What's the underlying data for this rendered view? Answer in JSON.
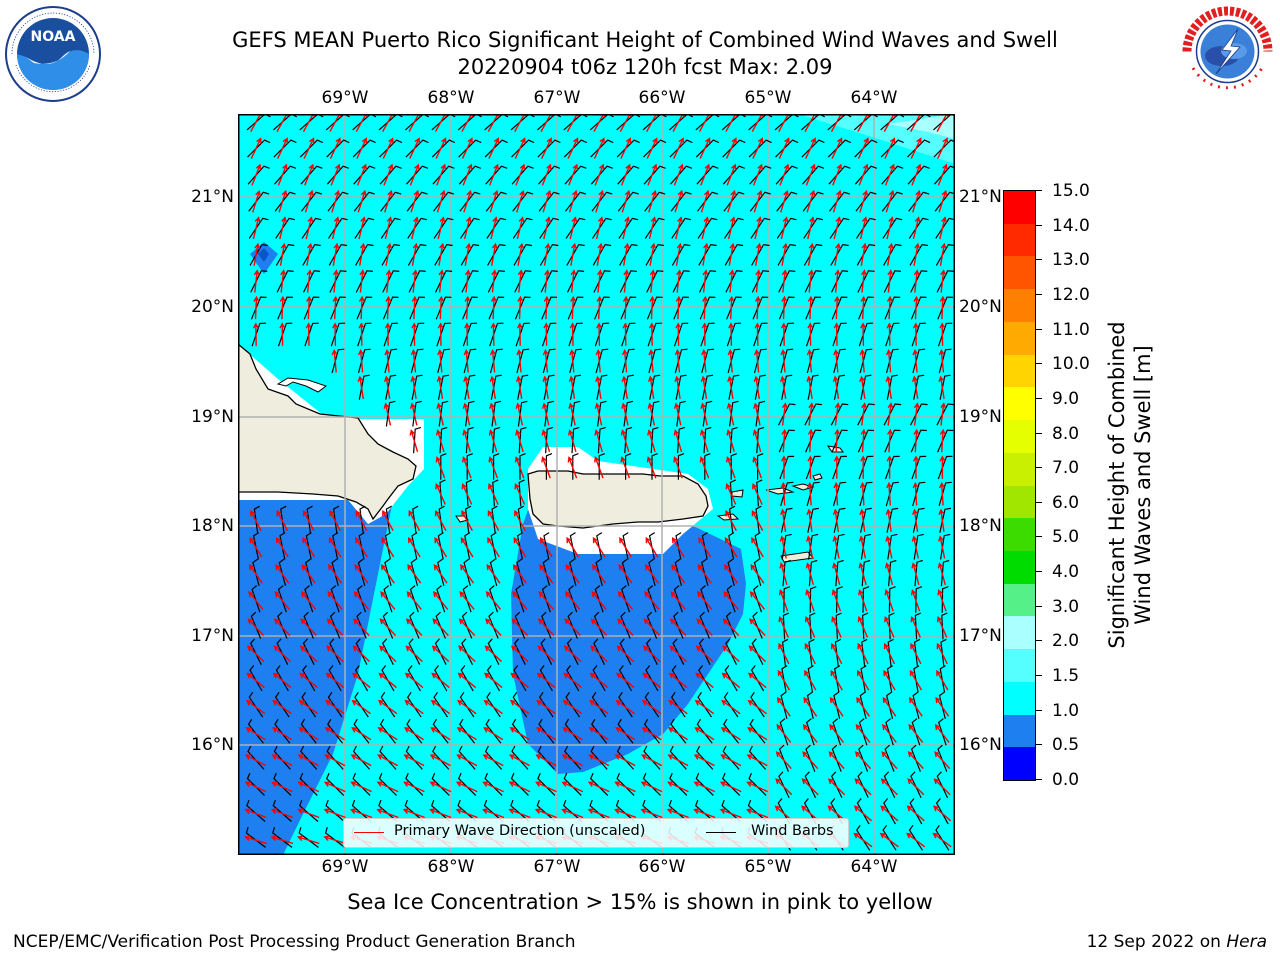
{
  "header": {
    "title_line1": "GEFS MEAN Puerto Rico Significant Height of Combined Wind Waves and Swell",
    "title_line2": "20220904 t06z 120h fcst   Max: 2.09"
  },
  "logos": {
    "left": {
      "name": "NOAA",
      "ring_text": "NATIONAL OCEANIC AND ATMOSPHERIC ADMINISTRATION · U.S. DEPARTMENT OF COMMERCE",
      "icon": "noaa-logo"
    },
    "right": {
      "name": "National Weather Service",
      "ring_text": "NATIONAL WEATHER SERVICE",
      "icon": "nws-logo"
    }
  },
  "map": {
    "lon_ticks": [
      "69°W",
      "68°W",
      "67°W",
      "66°W",
      "65°W",
      "64°W"
    ],
    "lat_ticks": [
      "21°N",
      "20°N",
      "19°N",
      "18°N",
      "17°N",
      "16°N"
    ],
    "extent": {
      "lon": [
        -70.0,
        -63.25
      ],
      "lat": [
        15.05,
        21.75
      ]
    },
    "colors": {
      "low": "#1e7ff0",
      "mid": "#00ffff",
      "high": "#55ffff",
      "land": "#efeede",
      "wave_arrow": "#ff0000",
      "wind_barb": "#000000"
    }
  },
  "legend": {
    "wave": "Primary Wave Direction (unscaled)",
    "barb": "Wind Barbs"
  },
  "colorbar": {
    "title_line1": "Significant Height of Combined",
    "title_line2": "Wind Waves and Swell [m]",
    "labels": [
      "15.0",
      "14.0",
      "13.0",
      "12.0",
      "11.0",
      "10.0",
      "9.0",
      "8.0",
      "7.0",
      "6.0",
      "5.0",
      "4.0",
      "3.0",
      "2.0",
      "1.5",
      "1.0",
      "0.5",
      "0.0"
    ],
    "colors": [
      "#ff0000",
      "#ff2a00",
      "#ff5500",
      "#ff8000",
      "#ffaa00",
      "#ffd400",
      "#ffff00",
      "#e6ff00",
      "#c8f000",
      "#a0e600",
      "#3cdc00",
      "#00dc00",
      "#55f088",
      "#aaffff",
      "#55ffff",
      "#00ffff",
      "#1e7ff0",
      "#0000ff"
    ]
  },
  "footer": {
    "sea_ice_note": "Sea Ice Concentration > 15% is shown in pink to yellow",
    "left": "NCEP/EMC/Verification Post Processing Product Generation Branch",
    "right_prefix": "12 Sep 2022 on ",
    "right_machine": "Hera"
  }
}
